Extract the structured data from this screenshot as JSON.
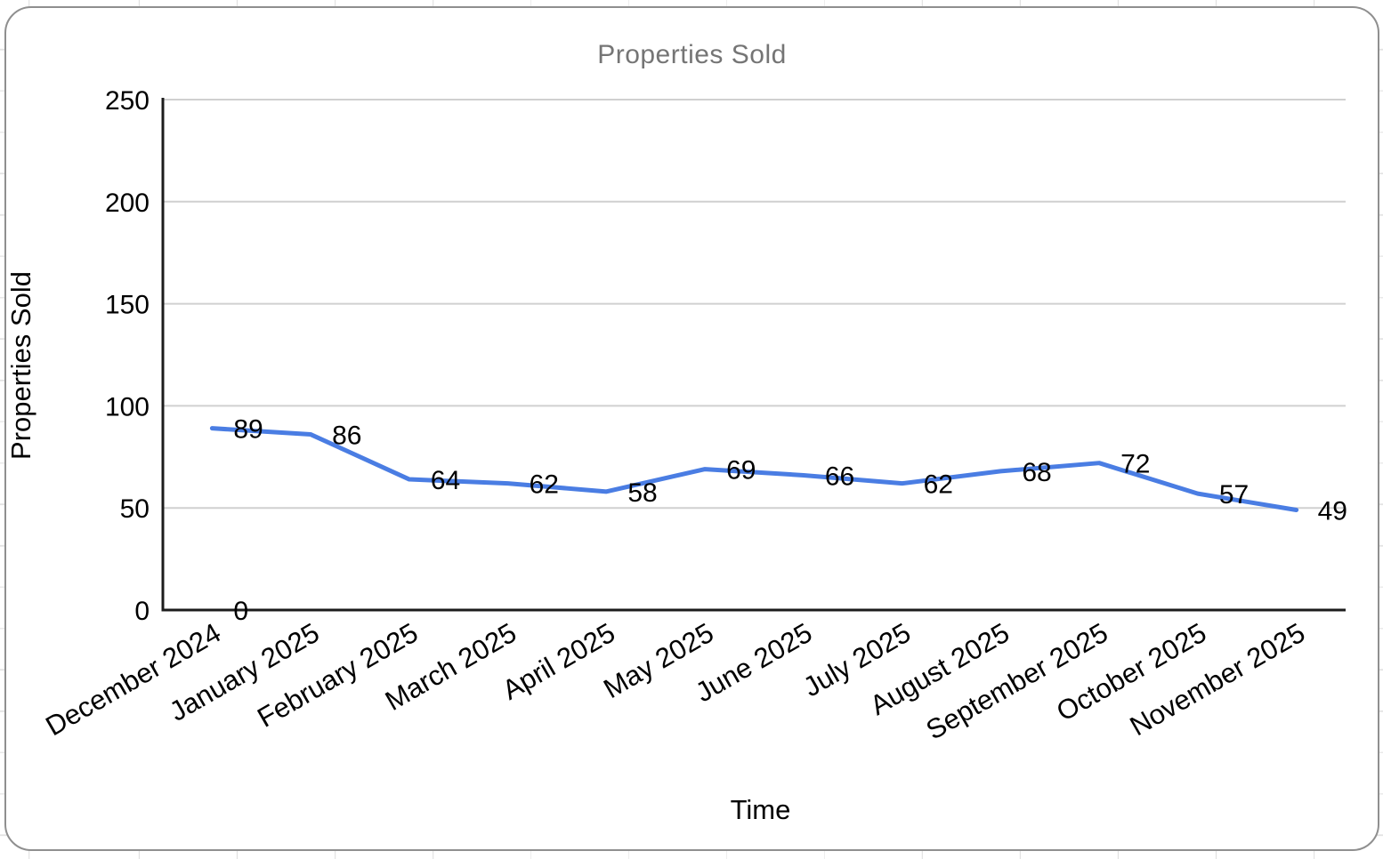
{
  "chart": {
    "title": "Properties Sold",
    "x_axis_title": "Time",
    "y_axis_title": "Properties Sold",
    "colors": {
      "line": "#4a7de3",
      "title_text": "#757575",
      "axis_text": "#000000",
      "data_label_text": "#000000",
      "gridline": "#d0d0d0",
      "axis_line": "#1c1c1c",
      "chart_border": "#8f8f8f",
      "sheet_gridline": "#e2e2e2"
    }
  },
  "chart_data": {
    "type": "line",
    "title": "Properties Sold",
    "xlabel": "Time",
    "ylabel": "Properties Sold",
    "categories": [
      "December 2024",
      "January 2025",
      "February 2025",
      "March 2025",
      "April 2025",
      "May 2025",
      "June 2025",
      "July 2025",
      "August 2025",
      "September 2025",
      "October 2025",
      "November 2025"
    ],
    "series": [
      {
        "name": "Properties Sold",
        "values": [
          89,
          86,
          64,
          62,
          58,
          69,
          66,
          62,
          68,
          72,
          57,
          49
        ]
      }
    ],
    "data_labels_visible": true,
    "annotations": [
      {
        "category_index": 0,
        "value": 0,
        "label": "0"
      }
    ],
    "ylim": [
      0,
      250
    ],
    "yticks": [
      0,
      50,
      100,
      150,
      200,
      250
    ],
    "grid": true,
    "legend": "none",
    "x_label_rotation_deg": -30
  }
}
